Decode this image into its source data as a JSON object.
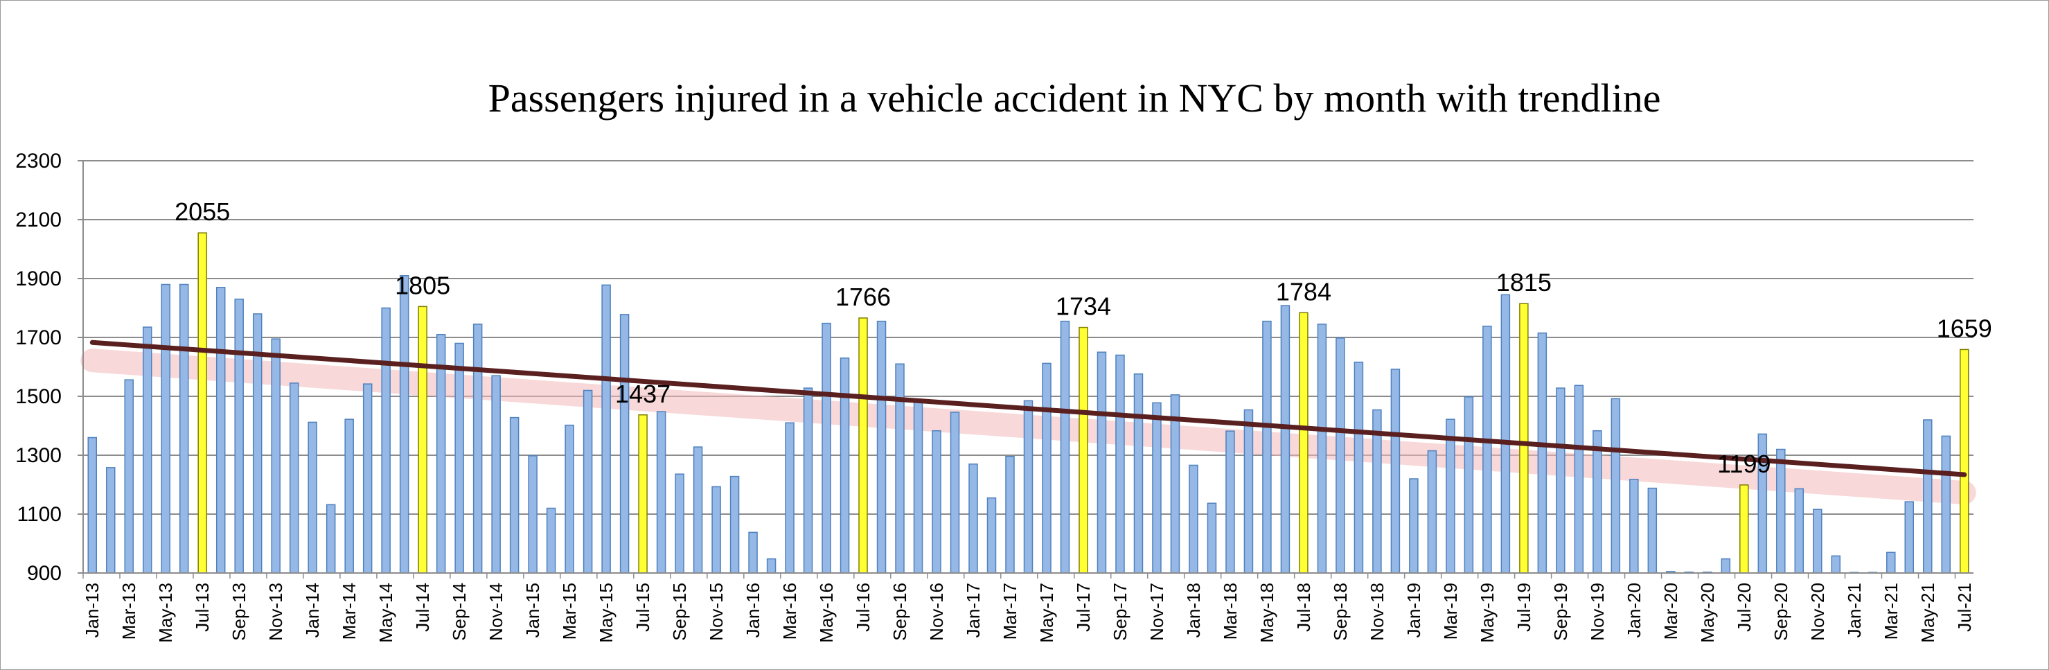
{
  "chart_data": {
    "type": "bar",
    "title": "Passengers injured in a vehicle accident in NYC by month with trendline",
    "xlabel": "",
    "ylabel": "",
    "ylim": [
      900,
      2300
    ],
    "yticks": [
      "900",
      "1100",
      "1300",
      "1500",
      "1700",
      "1900",
      "2100",
      "2300"
    ],
    "grid": true,
    "legend": "none",
    "tick_labels_every": 2,
    "categories": [
      "Jan-13",
      "Feb-13",
      "Mar-13",
      "Apr-13",
      "May-13",
      "Jun-13",
      "Jul-13",
      "Aug-13",
      "Sep-13",
      "Oct-13",
      "Nov-13",
      "Dec-13",
      "Jan-14",
      "Feb-14",
      "Mar-14",
      "Apr-14",
      "May-14",
      "Jun-14",
      "Jul-14",
      "Aug-14",
      "Sep-14",
      "Oct-14",
      "Nov-14",
      "Dec-14",
      "Jan-15",
      "Feb-15",
      "Mar-15",
      "Apr-15",
      "May-15",
      "Jun-15",
      "Jul-15",
      "Aug-15",
      "Sep-15",
      "Oct-15",
      "Nov-15",
      "Dec-15",
      "Jan-16",
      "Feb-16",
      "Mar-16",
      "Apr-16",
      "May-16",
      "Jun-16",
      "Jul-16",
      "Aug-16",
      "Sep-16",
      "Oct-16",
      "Nov-16",
      "Dec-16",
      "Jan-17",
      "Feb-17",
      "Mar-17",
      "Apr-17",
      "May-17",
      "Jun-17",
      "Jul-17",
      "Aug-17",
      "Sep-17",
      "Oct-17",
      "Nov-17",
      "Dec-17",
      "Jan-18",
      "Feb-18",
      "Mar-18",
      "Apr-18",
      "May-18",
      "Jun-18",
      "Jul-18",
      "Aug-18",
      "Sep-18",
      "Oct-18",
      "Nov-18",
      "Dec-18",
      "Jan-19",
      "Feb-19",
      "Mar-19",
      "Apr-19",
      "May-19",
      "Jun-19",
      "Jul-19",
      "Aug-19",
      "Sep-19",
      "Oct-19",
      "Nov-19",
      "Dec-19",
      "Jan-20",
      "Feb-20",
      "Mar-20",
      "Apr-20",
      "May-20",
      "Jun-20",
      "Jul-20",
      "Aug-20",
      "Sep-20",
      "Oct-20",
      "Nov-20",
      "Dec-20",
      "Jan-21",
      "Feb-21",
      "Mar-21",
      "Apr-21",
      "May-21",
      "Jun-21",
      "Jul-21"
    ],
    "values": [
      1360,
      1258,
      1556,
      1735,
      1880,
      1880,
      2055,
      1870,
      1830,
      1780,
      1695,
      1545,
      1412,
      1132,
      1422,
      1542,
      1800,
      1910,
      1805,
      1710,
      1680,
      1745,
      1570,
      1428,
      1298,
      1120,
      1402,
      1520,
      1878,
      1778,
      1437,
      1448,
      1236,
      1328,
      1193,
      1228,
      1038,
      948,
      1410,
      1528,
      1748,
      1630,
      1766,
      1755,
      1610,
      1488,
      1383,
      1446,
      1270,
      1155,
      1296,
      1485,
      1612,
      1755,
      1734,
      1650,
      1640,
      1576,
      1478,
      1505,
      1266,
      1137,
      1382,
      1454,
      1755,
      1808,
      1784,
      1745,
      1698,
      1616,
      1454,
      1592,
      1220,
      1315,
      1422,
      1498,
      1738,
      1845,
      1815,
      1715,
      1528,
      1537,
      1383,
      1492,
      1218,
      1188,
      905,
      903,
      903,
      948,
      1199,
      1372,
      1320,
      1186,
      1116,
      958,
      902,
      902,
      970,
      1142,
      1420,
      1365,
      1659
    ],
    "highlight_months": [
      "Jul-13",
      "Jul-14",
      "Jul-15",
      "Jul-16",
      "Jul-17",
      "Jul-18",
      "Jul-19",
      "Jul-20",
      "Jul-21"
    ],
    "data_labels": [
      {
        "category": "Jul-13",
        "text": "2055"
      },
      {
        "category": "Jul-14",
        "text": "1805"
      },
      {
        "category": "Jul-15",
        "text": "1437"
      },
      {
        "category": "Jul-16",
        "text": "1766"
      },
      {
        "category": "Jul-17",
        "text": "1734"
      },
      {
        "category": "Jul-18",
        "text": "1784"
      },
      {
        "category": "Jul-19",
        "text": "1815"
      },
      {
        "category": "Jul-20",
        "text": "1199"
      },
      {
        "category": "Jul-21",
        "text": "1659"
      }
    ],
    "trendline": {
      "type": "linear",
      "start_value": 1683,
      "end_value": 1234
    },
    "colors": {
      "bar": "#95b8e6",
      "bar_edge": "#4f81bd",
      "highlight": "#ffff33",
      "highlight_edge": "#7f7f00",
      "trendline": "#5a2020",
      "trend_glow": "#f2b8b8",
      "grid": "#8c8c8c"
    }
  }
}
